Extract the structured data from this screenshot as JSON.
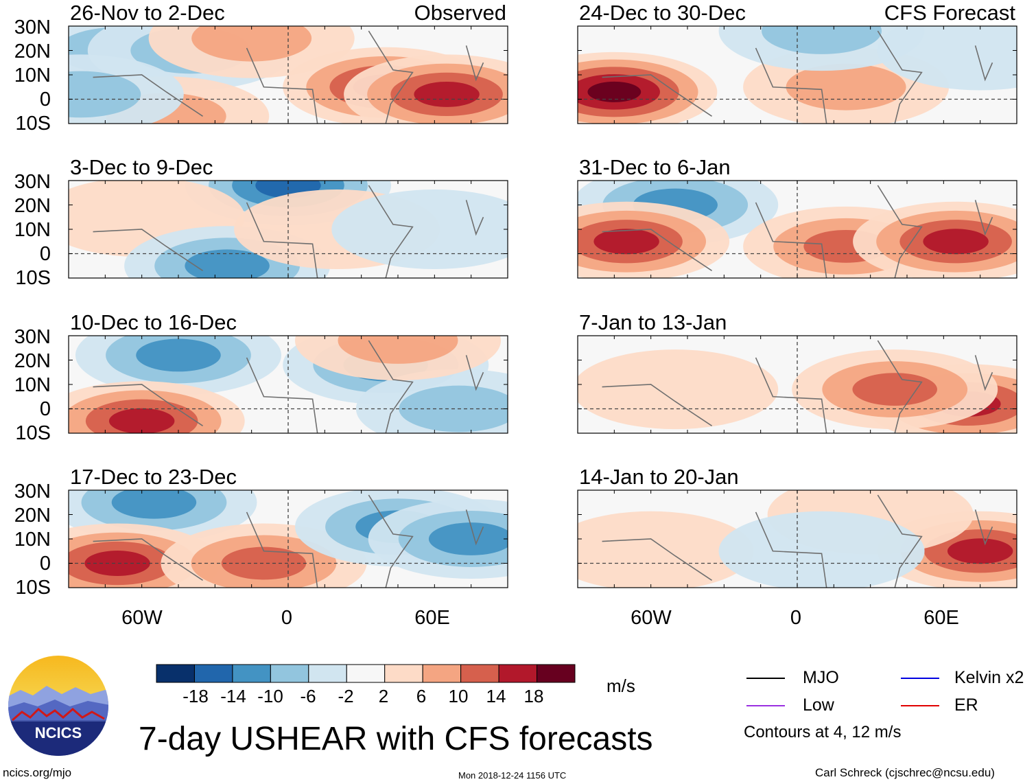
{
  "chart_data": {
    "type": "heatmap",
    "title": "7-day USHEAR with CFS forecasts",
    "variable": "USHEAR",
    "units": "m/s",
    "column_titles": {
      "left": "Observed",
      "right": "CFS Forecast"
    },
    "lat_labels": [
      "30N",
      "20N",
      "10N",
      "0",
      "10S"
    ],
    "lat_values": [
      30,
      20,
      10,
      0,
      -10
    ],
    "lon_labels": [
      "60W",
      "0",
      "60E"
    ],
    "lon_values": [
      -60,
      0,
      60
    ],
    "lon_range": [
      -90,
      90
    ],
    "lat_range": [
      -10,
      30
    ],
    "colorbar": {
      "ticks": [
        "-18",
        "-14",
        "-10",
        "-6",
        "-2",
        "2",
        "6",
        "10",
        "14",
        "18"
      ],
      "colors": [
        "#08306b",
        "#2166ac",
        "#4393c3",
        "#92c5de",
        "#d1e5f0",
        "#f7f7f7",
        "#fddbc7",
        "#f4a582",
        "#d6604d",
        "#b2182b",
        "#67001f"
      ]
    },
    "contour_legend": [
      {
        "name": "MJO",
        "color": "#000000"
      },
      {
        "name": "Kelvin x2",
        "color": "#0000e0"
      },
      {
        "name": "Low",
        "color": "#9a30e0"
      },
      {
        "name": "ER",
        "color": "#e00000"
      }
    ],
    "contour_note": "Contours at 4, 12 m/s",
    "panels": [
      {
        "period": "26-Nov to 2-Dec",
        "source": "Observed",
        "anomalies": [
          {
            "lon": -70,
            "lat": 20,
            "value": -8
          },
          {
            "lon": -40,
            "lat": 20,
            "value": -9
          },
          {
            "lon": -15,
            "lat": 25,
            "value": 10
          },
          {
            "lon": 40,
            "lat": 5,
            "value": 16
          },
          {
            "lon": 65,
            "lat": 2,
            "value": 18
          },
          {
            "lon": -50,
            "lat": -7,
            "value": 10
          },
          {
            "lon": -85,
            "lat": 2,
            "value": -10
          }
        ]
      },
      {
        "period": "3-Dec to 9-Dec",
        "anomalies": [
          {
            "lon": 0,
            "lat": 28,
            "value": -18
          },
          {
            "lon": -60,
            "lat": 15,
            "value": 6
          },
          {
            "lon": -25,
            "lat": -5,
            "value": -14
          },
          {
            "lon": 20,
            "lat": 10,
            "value": 6
          },
          {
            "lon": 60,
            "lat": 10,
            "value": -6
          }
        ]
      },
      {
        "period": "10-Dec to 16-Dec",
        "anomalies": [
          {
            "lon": -45,
            "lat": 22,
            "value": -14
          },
          {
            "lon": -60,
            "lat": -5,
            "value": 18
          },
          {
            "lon": 40,
            "lat": 18,
            "value": -12
          },
          {
            "lon": 70,
            "lat": 0,
            "value": -10
          },
          {
            "lon": 45,
            "lat": 28,
            "value": 10
          }
        ]
      },
      {
        "period": "17-Dec to 23-Dec",
        "anomalies": [
          {
            "lon": -55,
            "lat": 25,
            "value": -12
          },
          {
            "lon": -70,
            "lat": 0,
            "value": 18
          },
          {
            "lon": -10,
            "lat": 0,
            "value": 12
          },
          {
            "lon": 45,
            "lat": 15,
            "value": -12
          },
          {
            "lon": 75,
            "lat": 10,
            "value": -12
          }
        ]
      },
      {
        "period": "24-Dec to 30-Dec",
        "source": "CFS Forecast",
        "anomalies": [
          {
            "lon": -75,
            "lat": 3,
            "value": 20
          },
          {
            "lon": 20,
            "lat": 5,
            "value": 10
          },
          {
            "lon": 10,
            "lat": 28,
            "value": -8
          },
          {
            "lon": 75,
            "lat": 20,
            "value": -6
          }
        ]
      },
      {
        "period": "31-Dec to 6-Jan",
        "anomalies": [
          {
            "lon": -50,
            "lat": 20,
            "value": -12
          },
          {
            "lon": -70,
            "lat": 5,
            "value": 18
          },
          {
            "lon": 20,
            "lat": 3,
            "value": 14
          },
          {
            "lon": 65,
            "lat": 5,
            "value": 16
          }
        ]
      },
      {
        "period": "7-Jan to 13-Jan",
        "anomalies": [
          {
            "lon": 70,
            "lat": 2,
            "value": 18
          },
          {
            "lon": 40,
            "lat": 8,
            "value": 12
          },
          {
            "lon": -50,
            "lat": 8,
            "value": 4
          }
        ]
      },
      {
        "period": "14-Jan to 20-Jan",
        "anomalies": [
          {
            "lon": 75,
            "lat": 5,
            "value": 16
          },
          {
            "lon": 30,
            "lat": 20,
            "value": 6
          },
          {
            "lon": -60,
            "lat": 5,
            "value": 4
          },
          {
            "lon": 10,
            "lat": 5,
            "value": -4
          }
        ]
      }
    ]
  },
  "logo": {
    "text": "NCICS"
  },
  "footer": {
    "website": "ncics.org/mjo",
    "timestamp": "Mon 2018-12-24 1156 UTC",
    "credit": "Carl Schreck (cjschrec@ncsu.edu)"
  }
}
